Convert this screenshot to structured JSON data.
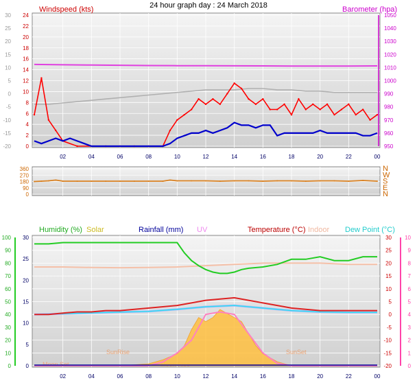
{
  "title": "24 hour graph day : 24 March 2018",
  "colors": {
    "wind_red": "#ff0000",
    "wind_dir": "#d98020",
    "baro": "#e040e0",
    "humidity": "#22cc22",
    "temperature": "#dd2222",
    "indoor": "#f5c0a8",
    "dewpoint": "#33ddee",
    "solar": "#ffc040",
    "uv": "#ff80c0",
    "avg_wind": "#0000cc",
    "gust_gray": "#b0b0b0",
    "rainfall": "#000099",
    "solar_curve": "#e8c8a8"
  },
  "chart_data": [
    {
      "type": "line",
      "panel": "wind_baro",
      "left_axis_label": "Windspeed (kts)",
      "right_axis_label": "Barometer (hpa)",
      "left_ticks": [
        "24",
        "22",
        "20",
        "18",
        "16",
        "14",
        "12",
        "10",
        "8",
        "6",
        "4",
        "2",
        "0"
      ],
      "outer_left_ticks": [
        "30",
        "25",
        "20",
        "15",
        "10",
        "5",
        "0",
        "-5",
        "-10",
        "-15",
        "-20"
      ],
      "right_ticks": [
        "1050",
        "1040",
        "1030",
        "1020",
        "1010",
        "1000",
        "990",
        "980",
        "970",
        "960",
        "950"
      ],
      "xlim": [
        0,
        24
      ],
      "ylim": [
        0,
        25
      ],
      "baro_ylim": [
        945,
        1050
      ],
      "series": [
        {
          "key": "gust",
          "x": [
            0,
            0.5,
            1,
            1.5,
            2,
            3,
            4,
            5,
            6,
            7,
            8,
            9,
            9.5,
            10,
            10.5,
            11,
            11.5,
            12,
            12.5,
            13,
            13.5,
            14,
            14.5,
            15,
            15.5,
            16,
            16.5,
            17,
            17.5,
            18,
            18.5,
            19,
            19.5,
            20,
            20.5,
            21,
            21.5,
            22,
            22.5,
            23,
            23.5,
            24
          ],
          "values": [
            6,
            13,
            5,
            3,
            1,
            0,
            0,
            0,
            0,
            0,
            0,
            0,
            3,
            5,
            6,
            7,
            9,
            8,
            9,
            8,
            10,
            12,
            11,
            9,
            8,
            9,
            7,
            7,
            8,
            6,
            9,
            7,
            8,
            7,
            8,
            6,
            7,
            8,
            6,
            7,
            5,
            6
          ]
        },
        {
          "key": "average",
          "x": [
            0,
            0.5,
            1,
            1.5,
            2,
            2.5,
            3,
            3.5,
            4,
            5,
            6,
            7,
            8,
            9,
            9.5,
            10,
            10.5,
            11,
            11.5,
            12,
            12.5,
            13,
            13.5,
            14,
            14.5,
            15,
            15.5,
            16,
            16.5,
            17,
            17.5,
            18,
            18.5,
            19,
            19.5,
            20,
            20.5,
            21,
            21.5,
            22,
            22.5,
            23,
            23.5,
            24
          ],
          "values": [
            1,
            0.5,
            1,
            1.5,
            1,
            1.5,
            1,
            0.5,
            0,
            0,
            0,
            0,
            0,
            0,
            0.5,
            1.5,
            2,
            2.5,
            2.5,
            3,
            2.5,
            3,
            3.5,
            4.5,
            4,
            4,
            3.5,
            4,
            4,
            2,
            2.5,
            2.5,
            2.5,
            2.5,
            2.5,
            3,
            2.5,
            2.5,
            2.5,
            2.5,
            2.5,
            2,
            2,
            2.5
          ]
        },
        {
          "key": "barometer",
          "x": [
            0,
            2,
            4,
            6,
            8,
            10,
            12,
            14,
            16,
            18,
            20,
            22,
            24
          ],
          "values": [
            1010.5,
            1010.2,
            1010,
            1009.8,
            1009.6,
            1009.5,
            1009.5,
            1009.4,
            1009.3,
            1009.2,
            1009.2,
            1009.2,
            1009.3
          ]
        },
        {
          "key": "dewpoint_gray",
          "x": [
            0,
            1,
            2,
            3,
            4,
            5,
            6,
            7,
            8,
            9,
            10,
            11,
            12,
            13,
            14,
            15,
            16,
            17,
            18,
            19,
            20,
            21,
            22,
            23,
            24
          ],
          "values": [
            -4,
            -4,
            -3.5,
            -3,
            -2.5,
            -2,
            -1.5,
            -1,
            -0.5,
            0,
            0.5,
            1,
            1.5,
            1.5,
            1.5,
            2,
            2,
            1.5,
            1.5,
            1,
            1,
            0.5,
            0.5,
            0.5,
            0.5
          ]
        }
      ]
    },
    {
      "type": "scatter",
      "panel": "wind_direction",
      "left_ticks": [
        "360",
        "270",
        "180",
        "90",
        "0"
      ],
      "right_ticks": [
        "N",
        "W",
        "S",
        "E",
        "N"
      ],
      "xlim": [
        0,
        24
      ],
      "ylim": [
        0,
        360
      ],
      "series": [
        {
          "key": "direction",
          "x": [
            0,
            0.5,
            1,
            1.5,
            2,
            3,
            4,
            5,
            6,
            7,
            8,
            9,
            9.5,
            10,
            11,
            12,
            13,
            14,
            15,
            16,
            17,
            18,
            19,
            20,
            21,
            22,
            23,
            24
          ],
          "values": [
            180,
            185,
            190,
            200,
            185,
            185,
            185,
            185,
            185,
            185,
            185,
            185,
            200,
            190,
            190,
            190,
            185,
            190,
            190,
            185,
            190,
            190,
            185,
            190,
            190,
            185,
            195,
            185
          ]
        }
      ]
    },
    {
      "type": "line",
      "panel": "humidity_temp",
      "legend": [
        "Humidity (%)",
        "Solar",
        "Rainfall (mm)",
        "UV",
        "Temperature (°C)",
        "Indoor",
        "Dew Point (°C)"
      ],
      "outer_left_ticks": [
        "100",
        "90",
        "80",
        "70",
        "60",
        "50",
        "40",
        "30",
        "20",
        "10",
        "0"
      ],
      "left_ticks": [
        "30",
        "25",
        "20",
        "15",
        "10",
        "5",
        "0"
      ],
      "right_ticks": [
        "30",
        "25",
        "20",
        "15",
        "10",
        "5",
        "0",
        "-5",
        "-10",
        "-15",
        "-20"
      ],
      "uv_ticks": [
        "10",
        "9",
        "8",
        "7",
        "6",
        "5",
        "4",
        "3",
        "2",
        "1",
        "0"
      ],
      "x_ticks": [
        "02",
        "04",
        "06",
        "08",
        "10",
        "12",
        "14",
        "16",
        "18",
        "20",
        "22",
        "00"
      ],
      "annotations": [
        "Moon Set",
        "Moon Rise",
        "SunRise",
        "SunSet"
      ],
      "xlim": [
        0,
        24
      ],
      "ylim": [
        -20,
        30
      ],
      "series": [
        {
          "key": "humidity",
          "x": [
            0,
            1,
            2,
            3,
            4,
            5,
            6,
            7,
            8,
            9,
            10,
            10.5,
            11,
            11.5,
            12,
            12.5,
            13,
            13.5,
            14,
            14.5,
            15,
            16,
            17,
            18,
            19,
            20,
            21,
            22,
            23,
            24
          ],
          "values": [
            95,
            95,
            96,
            96,
            96,
            96,
            96,
            96,
            96,
            96,
            96,
            88,
            82,
            78,
            75,
            73,
            72,
            72,
            73,
            75,
            76,
            77,
            79,
            83,
            83,
            85,
            82,
            82,
            85,
            85
          ]
        },
        {
          "key": "temperature",
          "x": [
            0,
            1,
            2,
            3,
            4,
            5,
            6,
            7,
            8,
            9,
            10,
            11,
            12,
            13,
            14,
            15,
            16,
            17,
            18,
            19,
            20,
            21,
            22,
            23,
            24
          ],
          "values": [
            0,
            0,
            0.5,
            1,
            1,
            1.5,
            1.5,
            2,
            2.5,
            3,
            3.5,
            4.5,
            5.5,
            6,
            6.5,
            5.5,
            4.5,
            3.5,
            2.5,
            2,
            1.5,
            1.5,
            1.5,
            1.5,
            1.5
          ]
        },
        {
          "key": "dewpoint",
          "x": [
            0,
            2,
            4,
            6,
            8,
            10,
            12,
            14,
            16,
            18,
            20,
            22,
            24
          ],
          "values": [
            0,
            0.3,
            0.6,
            0.9,
            1.2,
            2,
            3,
            3.5,
            2.5,
            1.5,
            1,
            0.8,
            0.8
          ]
        },
        {
          "key": "indoor",
          "x": [
            0,
            2,
            4,
            6,
            8,
            10,
            12,
            14,
            16,
            18,
            20,
            22,
            24
          ],
          "values": [
            18.5,
            18.5,
            18.3,
            18.2,
            18.3,
            18.5,
            19,
            19.5,
            20,
            20,
            20,
            19.5,
            19.5
          ]
        },
        {
          "key": "solar",
          "x": [
            0,
            6,
            8,
            9,
            10,
            10.5,
            11,
            11.5,
            12,
            12.5,
            13,
            13.5,
            14,
            14.5,
            15,
            15.5,
            16,
            17,
            18,
            24
          ],
          "values": [
            0,
            0,
            0.5,
            1.5,
            3,
            5,
            9,
            12,
            11,
            12,
            14,
            13,
            12,
            11,
            8,
            5,
            3,
            1,
            0,
            0
          ]
        },
        {
          "key": "uv",
          "x": [
            0,
            8,
            9,
            10,
            11,
            12,
            13,
            14,
            15,
            16,
            17,
            18,
            24
          ],
          "values": [
            0,
            0,
            0.3,
            1,
            2,
            4,
            4.2,
            4,
            2.5,
            1,
            0.2,
            0,
            0
          ]
        }
      ]
    }
  ]
}
